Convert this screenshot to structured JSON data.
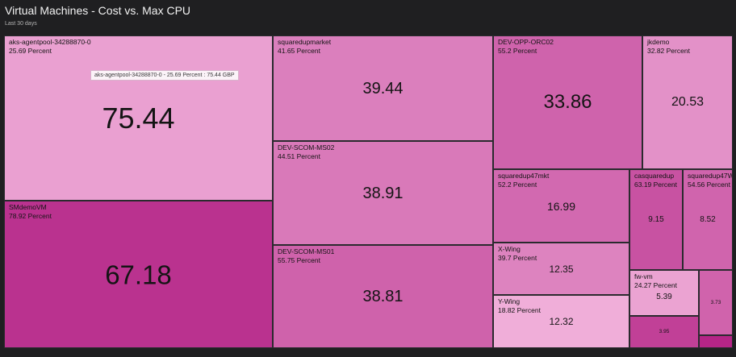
{
  "header": {
    "title": "Virtual Machines - Cost vs. Max CPU",
    "subtitle": "Last 30 days"
  },
  "tooltip": {
    "text": "aks-agentpool-34288870-0 - 25.69 Percent : 75.44 GBP"
  },
  "chart_data": {
    "type": "treemap",
    "title": "Virtual Machines - Cost vs. Max CPU",
    "subtitle": "Last 30 days",
    "size_metric": "Cost",
    "size_unit": "GBP",
    "color_metric": "Max CPU",
    "color_unit": "Percent",
    "colors": {
      "low": "#f3b6de",
      "high": "#b52587"
    },
    "items": [
      {
        "name": "aks-agentpool-34288870-0",
        "percent": "25.69 Percent",
        "value": 75.44
      },
      {
        "name": "SMdemoVM",
        "percent": "78.92 Percent",
        "value": 67.18
      },
      {
        "name": "squaredupmarket",
        "percent": "41.65 Percent",
        "value": 39.44
      },
      {
        "name": "DEV-SCOM-MS02",
        "percent": "44.51 Percent",
        "value": 38.91
      },
      {
        "name": "DEV-SCOM-MS01",
        "percent": "55.75 Percent",
        "value": 38.81
      },
      {
        "name": "DEV-OPP-ORC02",
        "percent": "55.2 Percent",
        "value": 33.86
      },
      {
        "name": "jkdemo",
        "percent": "32.82 Percent",
        "value": 20.53
      },
      {
        "name": "squaredup47mkt",
        "percent": "52.2 Percent",
        "value": 16.99
      },
      {
        "name": "X-Wing",
        "percent": "39.7 Percent",
        "value": 12.35
      },
      {
        "name": "Y-Wing",
        "percent": "18.82 Percent",
        "value": 12.32
      },
      {
        "name": "casquaredup",
        "percent": "63.19 Percent",
        "value": 9.15
      },
      {
        "name": "squaredup47W",
        "percent": "54.56 Percent",
        "value": 8.52
      },
      {
        "name": "fw-vm",
        "percent": "24.27 Percent",
        "value": 5.39
      },
      {
        "name": "",
        "percent": "",
        "value": 3.95
      },
      {
        "name": "",
        "percent": "",
        "value": 3.73
      },
      {
        "name": "",
        "percent": "",
        "value": null
      }
    ]
  }
}
